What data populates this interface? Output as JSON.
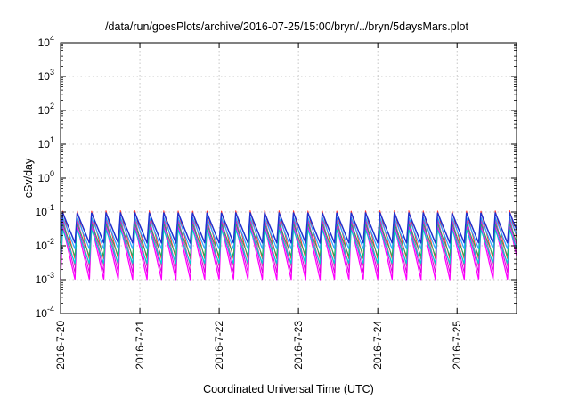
{
  "chart_data": {
    "type": "line",
    "title": "/data/run/goesPlots/archive/2016-07-25/15:00/bryn/../bryn/5daysMars.plot",
    "xlabel": "Coordinated Universal Time (UTC)",
    "ylabel": "cSv/day",
    "yscale": "log",
    "ylim": [
      0.0001,
      10000
    ],
    "xlim": [
      "2016-07-20",
      "2016-07-25 18:00"
    ],
    "grid": true,
    "x_ticks": [
      "2016-7-20",
      "2016-7-21",
      "2016-7-22",
      "2016-7-23",
      "2016-7-24",
      "2016-7-25"
    ],
    "y_ticks": [
      {
        "base": "10",
        "exp": "-4",
        "value": 0.0001
      },
      {
        "base": "10",
        "exp": "-3",
        "value": 0.001
      },
      {
        "base": "10",
        "exp": "-2",
        "value": 0.01
      },
      {
        "base": "10",
        "exp": "-1",
        "value": 0.1
      },
      {
        "base": "10",
        "exp": "0",
        "value": 1
      },
      {
        "base": "10",
        "exp": "1",
        "value": 10
      },
      {
        "base": "10",
        "exp": "2",
        "value": 100
      },
      {
        "base": "10",
        "exp": "3",
        "value": 1000
      },
      {
        "base": "10",
        "exp": "4",
        "value": 10000
      }
    ],
    "pattern": {
      "cycles_per_day": 5.5,
      "cycle_start": "2016-07-20",
      "peak_phase": 0.15
    },
    "series": [
      {
        "color": "#ff00ff",
        "peak": 0.04,
        "trough": 0.001,
        "width": 1.3
      },
      {
        "color": "#dd00dd",
        "peak": 0.055,
        "trough": 0.0016,
        "width": 1.0
      },
      {
        "color": "#cc44aa",
        "peak": 0.065,
        "trough": 0.0025,
        "width": 1.0
      },
      {
        "color": "#ff3030",
        "peak": 0.11,
        "trough": 0.004,
        "width": 1.0
      },
      {
        "color": "#00d0d0",
        "peak": 0.03,
        "trough": 0.003,
        "width": 1.2
      },
      {
        "color": "#20b060",
        "peak": 0.045,
        "trough": 0.005,
        "width": 1.0
      },
      {
        "color": "#2aa8ff",
        "peak": 0.07,
        "trough": 0.008,
        "width": 1.2
      },
      {
        "color": "#2030d0",
        "peak": 0.095,
        "trough": 0.012,
        "width": 1.5
      }
    ]
  }
}
